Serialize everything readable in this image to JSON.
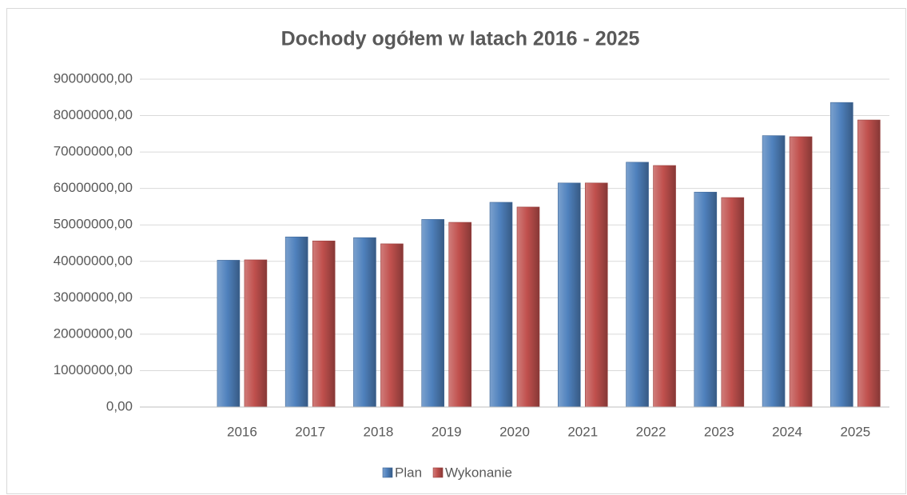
{
  "chart_data": {
    "type": "bar",
    "title": "Dochody ogółem w latach  2016 - 2025",
    "categories": [
      null,
      "2016",
      "2017",
      "2018",
      "2019",
      "2020",
      "2021",
      "2022",
      "2023",
      "2024",
      "2025"
    ],
    "series": [
      {
        "name": "Plan",
        "color": "#4f81bd",
        "values": [
          null,
          40300000,
          46700000,
          46500000,
          51500000,
          56200000,
          61500000,
          67200000,
          59000000,
          74500000,
          83600000
        ]
      },
      {
        "name": "Wykonanie",
        "color": "#c0504d",
        "values": [
          null,
          40400000,
          45600000,
          44800000,
          50700000,
          54900000,
          61500000,
          66300000,
          57500000,
          74200000,
          78800000
        ]
      }
    ],
    "ylim": [
      0,
      90000000
    ],
    "yticks": [
      {
        "value": 0,
        "label": "0,00"
      },
      {
        "value": 10000000,
        "label": "10000000,00"
      },
      {
        "value": 20000000,
        "label": "20000000,00"
      },
      {
        "value": 30000000,
        "label": "30000000,00"
      },
      {
        "value": 40000000,
        "label": "40000000,00"
      },
      {
        "value": 50000000,
        "label": "50000000,00"
      },
      {
        "value": 60000000,
        "label": "60000000,00"
      },
      {
        "value": 70000000,
        "label": "70000000,00"
      },
      {
        "value": 80000000,
        "label": "80000000,00"
      },
      {
        "value": 90000000,
        "label": "90000000,00"
      }
    ],
    "grid": true,
    "legend": "bottom"
  }
}
